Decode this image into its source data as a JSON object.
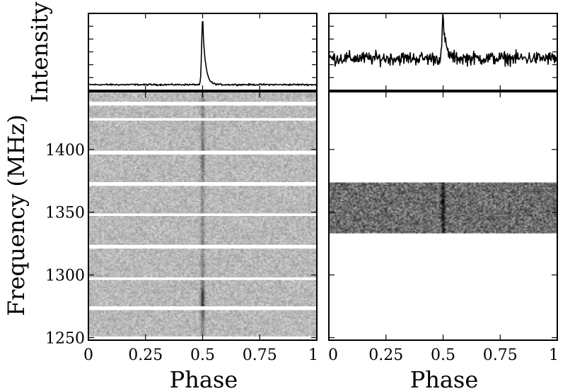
{
  "chart_data": [
    {
      "type": "line",
      "panel": "left-profile",
      "ylabel": "Intensity",
      "xlim": [
        0,
        1
      ],
      "grid": false,
      "peak_phase": 0.5,
      "baseline": 0.08,
      "peak_value": 1.0,
      "noise_level": 0.01
    },
    {
      "type": "line",
      "panel": "right-profile",
      "ylabel": "",
      "xlim": [
        0,
        1
      ],
      "grid": false,
      "peak_phase": 0.5,
      "baseline": 0.45,
      "peak_value": 1.0,
      "noise_level": 0.08
    },
    {
      "type": "heatmap",
      "panel": "left-spectrum",
      "xlabel": "Phase",
      "ylabel": "Frequency (MHz)",
      "xlim": [
        0,
        1
      ],
      "ylim": [
        1248,
        1446
      ],
      "x_ticks": [
        {
          "value": 0,
          "label": "0"
        },
        {
          "value": 0.25,
          "label": "0.25"
        },
        {
          "value": 0.5,
          "label": "0.5"
        },
        {
          "value": 0.75,
          "label": "0.75"
        },
        {
          "value": 1,
          "label": "1"
        }
      ],
      "y_ticks": [
        {
          "value": 1250,
          "label": "1250"
        },
        {
          "value": 1300,
          "label": "1300"
        },
        {
          "value": 1350,
          "label": "1350"
        },
        {
          "value": 1400,
          "label": "1400"
        }
      ],
      "data_freq_range": [
        1251,
        1446
      ],
      "masked_freq_bands": [
        [
          1272,
          1275
        ],
        [
          1296,
          1298
        ],
        [
          1321,
          1324
        ],
        [
          1347,
          1349
        ],
        [
          1371,
          1374
        ],
        [
          1396,
          1399
        ],
        [
          1423,
          1425
        ],
        [
          1435,
          1438
        ]
      ],
      "pulse_phase": 0.5,
      "colormap": "gray_r"
    },
    {
      "type": "heatmap",
      "panel": "right-spectrum",
      "xlabel": "Phase",
      "ylabel": "",
      "xlim": [
        0,
        1
      ],
      "ylim": [
        1248,
        1446
      ],
      "x_ticks": [
        {
          "value": 0,
          "label": "0"
        },
        {
          "value": 0.25,
          "label": "0.25"
        },
        {
          "value": 0.5,
          "label": "0.5"
        },
        {
          "value": 0.75,
          "label": "0.75"
        },
        {
          "value": 1,
          "label": "1"
        }
      ],
      "data_freq_range": [
        1333,
        1374
      ],
      "masked_freq_bands": [],
      "pulse_phase": 0.5,
      "colormap": "gray_r"
    }
  ]
}
